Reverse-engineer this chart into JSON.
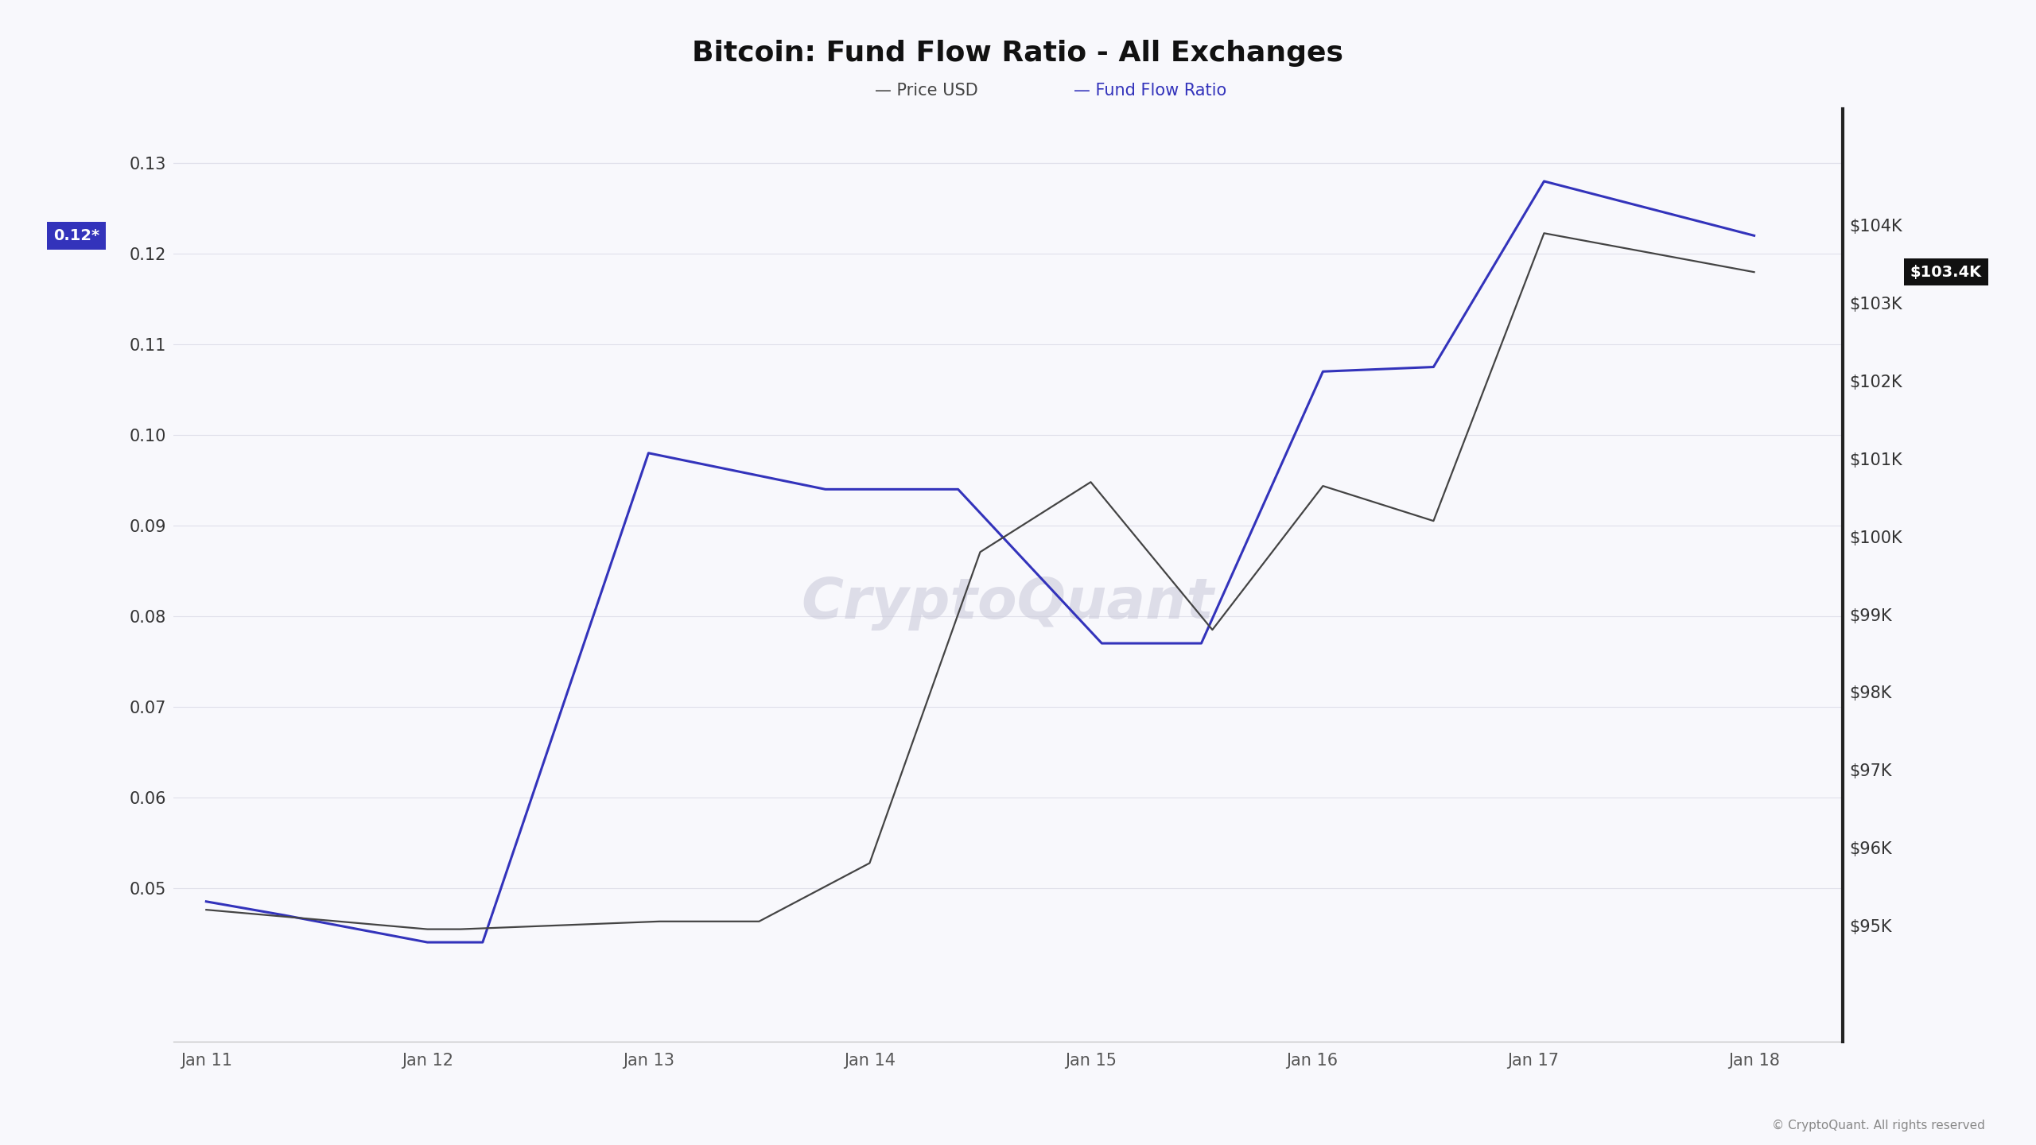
{
  "title": "Bitcoin: Fund Flow Ratio - All Exchanges",
  "watermark": "CryptoQuant",
  "copyright": "© CryptoQuant. All rights reserved",
  "background_color": "#f8f8fc",
  "grid_color": "#e0e0ea",
  "x_labels": [
    "Jan 11",
    "Jan 12",
    "Jan 13",
    "Jan 14",
    "Jan 15",
    "Jan 16",
    "Jan 17",
    "Jan 18"
  ],
  "x_positions": [
    0,
    1,
    2,
    3,
    4,
    5,
    6,
    7
  ],
  "fund_flow_ratio": {
    "x": [
      0,
      0.35,
      1.0,
      1.25,
      2.0,
      2.8,
      3.4,
      4.05,
      4.5,
      5.05,
      5.55,
      6.05,
      7.0
    ],
    "y": [
      0.0485,
      0.047,
      0.044,
      0.044,
      0.098,
      0.094,
      0.094,
      0.077,
      0.077,
      0.107,
      0.1075,
      0.128,
      0.122
    ],
    "color": "#3333bb",
    "linewidth": 2.2
  },
  "price_usd": {
    "x": [
      0,
      0.4,
      1.0,
      1.15,
      2.05,
      2.5,
      3.0,
      3.5,
      4.0,
      4.55,
      5.05,
      5.55,
      6.05,
      7.0
    ],
    "y": [
      95200,
      95100,
      94950,
      94950,
      95050,
      95050,
      95800,
      99800,
      100700,
      98800,
      100650,
      100200,
      103900,
      103400
    ],
    "color": "#444444",
    "linewidth": 1.6
  },
  "left_ylim": [
    0.033,
    0.136
  ],
  "left_yticks": [
    0.05,
    0.06,
    0.07,
    0.08,
    0.09,
    0.1,
    0.11,
    0.12,
    0.13
  ],
  "right_ylim": [
    93500,
    105500
  ],
  "right_yticks": [
    95000,
    96000,
    97000,
    98000,
    99000,
    100000,
    101000,
    102000,
    103000,
    104000
  ],
  "right_ytick_labels": [
    "$95K",
    "$96K",
    "$97K",
    "$98K",
    "$99K",
    "$100K",
    "$101K",
    "$102K",
    "$103K",
    "$104K"
  ],
  "current_ffr_label": "0.12*",
  "current_ffr_value": 0.122,
  "current_price_label": "$103.4K",
  "current_price_value": 103400,
  "ffr_label_bg": "#3333bb",
  "price_label_bg": "#111111",
  "title_fontsize": 26,
  "tick_fontsize": 15,
  "legend_fontsize": 15
}
